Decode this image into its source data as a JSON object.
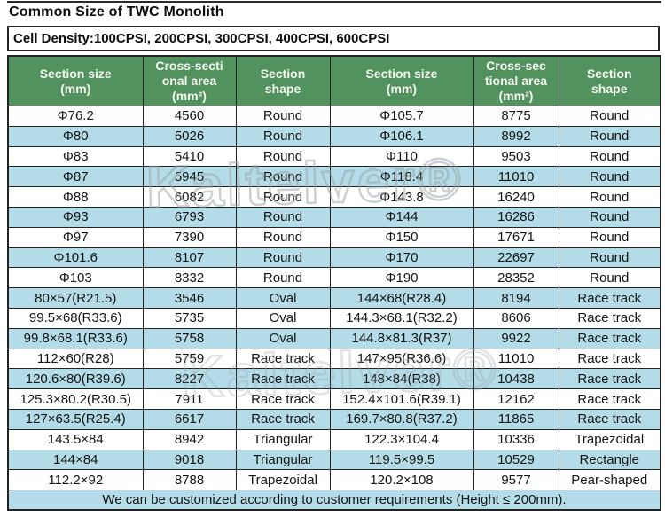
{
  "page": {
    "title": "Common Size of TWC Monolith",
    "subtitle": "Cell Density:100CPSI, 200CPSI, 300CPSI, 400CPSI, 600CPSI",
    "footer": "We can be customized according to customer requirements (Height ≤ 200mm).",
    "watermark": "Kaltelver®"
  },
  "colors": {
    "header_bg": "#52925f",
    "row_alt": "#b3dce8",
    "border": "#222222"
  },
  "table": {
    "headers": [
      {
        "lines": [
          "Section size",
          "(mm)"
        ]
      },
      {
        "lines": [
          "Cross-secti",
          "onal area",
          "(mm²)"
        ]
      },
      {
        "lines": [
          "Section",
          "shape"
        ]
      },
      {
        "lines": [
          "Section size",
          "(mm)"
        ]
      },
      {
        "lines": [
          "Cross-sec",
          "tional area",
          "(mm²)"
        ]
      },
      {
        "lines": [
          "Section",
          "shape"
        ]
      }
    ],
    "rows": [
      [
        "Φ76.2",
        "4560",
        "Round",
        "Φ105.7",
        "8775",
        "Round"
      ],
      [
        "Φ80",
        "5026",
        "Round",
        "Φ106.1",
        "8992",
        "Round"
      ],
      [
        "Φ83",
        "5410",
        "Round",
        "Φ110",
        "9503",
        "Round"
      ],
      [
        "Φ87",
        "5945",
        "Round",
        "Φ118.4",
        "11010",
        "Round"
      ],
      [
        "Φ88",
        "6082",
        "Round",
        "Φ143.8",
        "16240",
        "Round"
      ],
      [
        "Φ93",
        "6793",
        "Round",
        "Φ144",
        "16286",
        "Round"
      ],
      [
        "Φ97",
        "7390",
        "Round",
        "Φ150",
        "17671",
        "Round"
      ],
      [
        "Φ101.6",
        "8107",
        "Round",
        "Φ170",
        "22697",
        "Round"
      ],
      [
        "Φ103",
        "8332",
        "Round",
        "Φ190",
        "28352",
        "Round"
      ],
      [
        "80×57(R21.5)",
        "3546",
        "Oval",
        "144×68(R28.4)",
        "8194",
        "Race track"
      ],
      [
        "99.5×68(R33.6)",
        "5735",
        "Oval",
        "144.3×68.1(R32.2)",
        "8606",
        "Race track"
      ],
      [
        "99.8×68.1(R33.6)",
        "5758",
        "Oval",
        "144.8×81.3(R37)",
        "9922",
        "Race track"
      ],
      [
        "112×60(R28)",
        "5759",
        "Race track",
        "147×95(R36.6)",
        "11010",
        "Race track"
      ],
      [
        "120.6×80(R39.6)",
        "8227",
        "Race track",
        "148×84(R38)",
        "10438",
        "Race track"
      ],
      [
        "125.3×80.2(R30.5)",
        "7911",
        "Race track",
        "152.4×101.6(R39.1)",
        "12162",
        "Race track"
      ],
      [
        "127×63.5(R25.4)",
        "6617",
        "Race track",
        "169.7×80.8(R37.2)",
        "11865",
        "Race track"
      ],
      [
        "143.5×84",
        "8942",
        "Triangular",
        "122.3×104.4",
        "10336",
        "Trapezoidal"
      ],
      [
        "144×84",
        "9018",
        "Triangular",
        "119.5×99.5",
        "10529",
        "Rectangle"
      ],
      [
        "112.2×92",
        "8788",
        "Trapezoidal",
        "120.2×108",
        "9577",
        "Pear-shaped"
      ]
    ]
  }
}
